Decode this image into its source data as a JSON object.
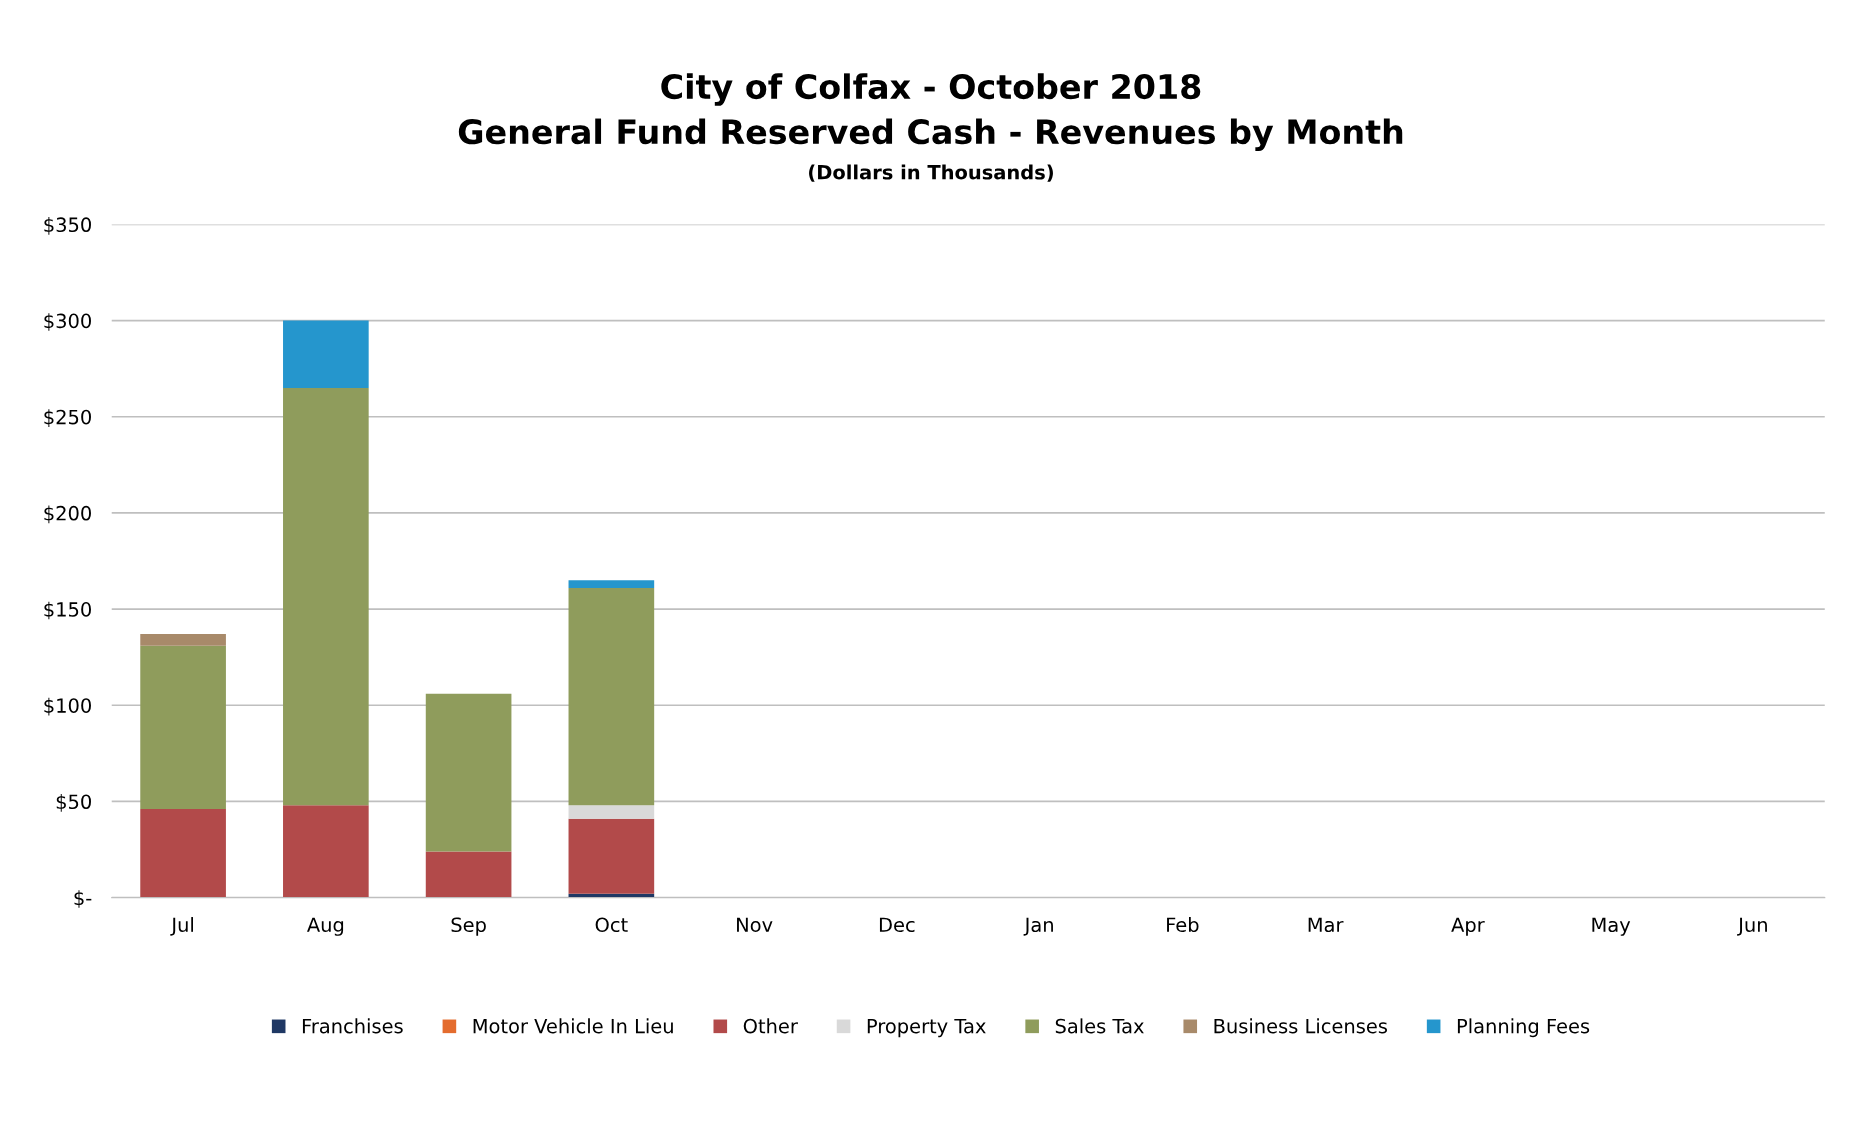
{
  "chart_data": {
    "type": "bar",
    "stacked": true,
    "title": "City of Colfax - October 2018\nGeneral Fund Reserved Cash - Revenues by Month",
    "subtitle": "(Dollars in Thousands)",
    "categories": [
      "Jul",
      "Aug",
      "Sep",
      "Oct",
      "Nov",
      "Dec",
      "Jan",
      "Feb",
      "Mar",
      "Apr",
      "May",
      "Jun"
    ],
    "series": [
      {
        "name": "Franchises",
        "color": "#1f3864",
        "values": [
          0,
          0,
          0,
          2,
          null,
          null,
          null,
          null,
          null,
          null,
          null,
          null
        ]
      },
      {
        "name": "Motor Vehicle In Lieu",
        "color": "#e46c2e",
        "values": [
          0,
          0,
          0,
          0,
          null,
          null,
          null,
          null,
          null,
          null,
          null,
          null
        ]
      },
      {
        "name": "Other",
        "color": "#b24a4a",
        "values": [
          46,
          48,
          24,
          39,
          null,
          null,
          null,
          null,
          null,
          null,
          null,
          null
        ]
      },
      {
        "name": "Property Tax",
        "color": "#d9d9d9",
        "values": [
          0,
          0,
          0,
          7,
          null,
          null,
          null,
          null,
          null,
          null,
          null,
          null
        ]
      },
      {
        "name": "Sales Tax",
        "color": "#8f9c5c",
        "values": [
          85,
          217,
          82,
          113,
          null,
          null,
          null,
          null,
          null,
          null,
          null,
          null
        ]
      },
      {
        "name": "Business Licenses",
        "color": "#a88a6a",
        "values": [
          6,
          0,
          0,
          0,
          null,
          null,
          null,
          null,
          null,
          null,
          null,
          null
        ]
      },
      {
        "name": "Planning Fees",
        "color": "#2596cd",
        "values": [
          0,
          35,
          0,
          4,
          null,
          null,
          null,
          null,
          null,
          null,
          null,
          null
        ]
      }
    ],
    "ylim": [
      0,
      350
    ],
    "yticks": [
      {
        "value": 0,
        "label": "$-"
      },
      {
        "value": 50,
        "label": "$50"
      },
      {
        "value": 100,
        "label": "$100"
      },
      {
        "value": 150,
        "label": "$150"
      },
      {
        "value": 200,
        "label": "$200"
      },
      {
        "value": 250,
        "label": "$250"
      },
      {
        "value": 300,
        "label": "$300"
      },
      {
        "value": 350,
        "label": "$350"
      }
    ],
    "grid": "y",
    "legend": "bottom"
  }
}
